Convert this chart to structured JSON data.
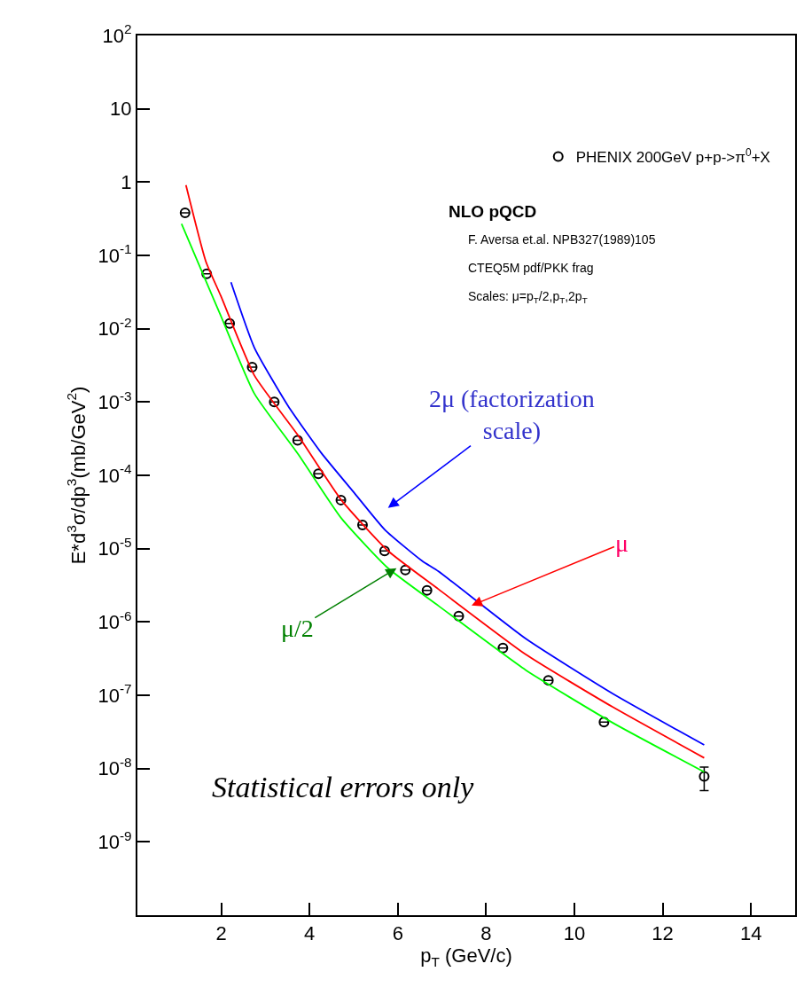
{
  "chart_data": {
    "type": "scatter",
    "xlabel": "p$_{T}$ (GeV/c)",
    "ylabel": "E*d$^{3}$σ/dp$^{3}$(mb/GeV$^{2}$)",
    "log": "y",
    "xlim": [
      0.1,
      15
    ],
    "xticks": [
      2,
      4,
      6,
      8,
      10,
      12,
      14
    ],
    "ylim": [
      1e-10,
      100
    ],
    "yticks": [
      {
        "value": 100,
        "label": "10$^{2}$"
      },
      10,
      1,
      {
        "value": 0.1,
        "label": "10$^{-1}$"
      },
      {
        "value": 0.01,
        "label": "10$^{-2}$"
      },
      {
        "value": 0.001,
        "label": "10$^{-3}$"
      },
      {
        "value": 0.0001,
        "label": "10$^{-4}$"
      },
      {
        "value": 1e-05,
        "label": "10$^{-5}$"
      },
      {
        "value": 1e-06,
        "label": "10$^{-6}$"
      },
      {
        "value": 1e-07,
        "label": "10$^{-7}$"
      },
      {
        "value": 1e-08,
        "label": "10$^{-8}$"
      },
      {
        "value": 1e-09,
        "label": "10$^{-9}$"
      }
    ],
    "legend": "top right",
    "series": [
      {
        "name": "PHENIX 200GeV p+p->π$^{0}$+X",
        "marker": "circle",
        "color": "#000000",
        "x": [
          1.18,
          1.67,
          2.19,
          2.7,
          3.2,
          3.73,
          4.2,
          4.71,
          5.2,
          5.7,
          6.17,
          6.66,
          7.38,
          8.38,
          9.41,
          10.67,
          12.94
        ],
        "values": [
          0.38,
          0.056,
          0.0118,
          0.003,
          0.001,
          0.0003,
          0.000105,
          4.6e-05,
          2.1e-05,
          9.3e-06,
          5.1e-06,
          2.7e-06,
          1.2e-06,
          4.4e-07,
          1.6e-07,
          4.3e-08,
          7.8e-09
        ],
        "errors": [
          null,
          null,
          null,
          null,
          null,
          null,
          null,
          null,
          null,
          null,
          null,
          null,
          null,
          null,
          null,
          null,
          [
            5e-09,
            1.05e-08
          ]
        ]
      },
      {
        "type": "line",
        "color": "#ff0000",
        "x": [
          1.2,
          1.65,
          1.99,
          2.75,
          3.74,
          4.72,
          5.78,
          6.92,
          8.9,
          10.87,
          12.94
        ],
        "values": [
          0.91,
          0.083,
          0.028,
          0.0023,
          0.00035,
          4.6e-05,
          9.3e-06,
          2.8e-06,
          3.6e-07,
          6.9e-08,
          1.4e-08
        ]
      },
      {
        "type": "line",
        "color": "#0000ff",
        "x": [
          2.22,
          2.75,
          3.51,
          4.26,
          5.03,
          5.71,
          6.55,
          6.92,
          8.9,
          10.87,
          12.94
        ],
        "values": [
          0.043,
          0.0055,
          0.00089,
          0.000204,
          5.6e-05,
          1.8e-05,
          6.8e-06,
          4.9e-06,
          5.9e-07,
          1.05e-07,
          2.1e-08
        ]
      },
      {
        "type": "line",
        "color": "#00ff00",
        "x": [
          1.1,
          1.65,
          1.99,
          2.75,
          3.74,
          4.72,
          5.78,
          6.92,
          8.9,
          10.87,
          12.94
        ],
        "values": [
          0.27,
          0.045,
          0.015,
          0.0013,
          0.000195,
          2.6e-05,
          5.4e-06,
          1.66e-06,
          2.2e-07,
          4.2e-08,
          9e-09
        ]
      }
    ],
    "annotations": [
      "NLO pQCD",
      "F. Aversa et.al. NPB327(1989)105",
      "CTEQ5M pdf/PKK frag",
      "Scales: μ=p$_{T}$/2,p$_{T}$,2p$_{T}$",
      "Statistical errors only",
      "2μ (factorization scale)",
      "μ",
      {
        "text": "μ/2",
        "x": 5.97,
        "y": 5.4e-06
      }
    ]
  }
}
